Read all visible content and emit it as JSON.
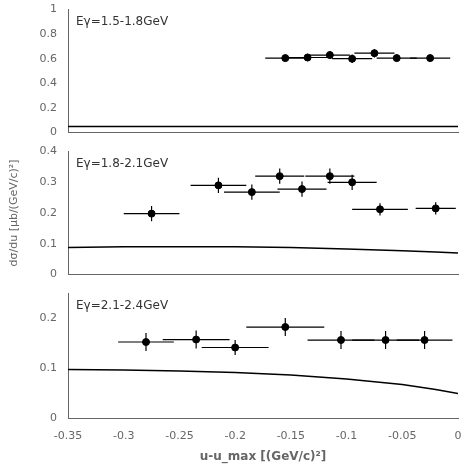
{
  "chart_data": [
    {
      "type": "scatter",
      "annotation": "Eγ=1.5-1.8GeV",
      "xlim": [
        -0.35,
        0.0
      ],
      "xticks": [
        -0.35,
        -0.3,
        -0.25,
        -0.2,
        -0.15,
        -0.1,
        -0.05,
        0
      ],
      "ylim": [
        0,
        1.0
      ],
      "yticks": [
        0,
        0.2,
        0.4,
        0.6,
        0.8,
        1
      ],
      "grid": false,
      "tick_labels": "y",
      "series": [
        {
          "type": "line",
          "color": "#000000",
          "line_style": "solid",
          "x": [
            -0.35,
            -0.3,
            -0.25,
            -0.2,
            -0.15,
            -0.1,
            -0.05,
            -0.02,
            0.0
          ],
          "values": [
            0.048,
            0.048,
            0.048,
            0.048,
            0.048,
            0.048,
            0.048,
            0.048,
            0.048
          ]
        },
        {
          "type": "scatter",
          "color": "#000000",
          "marker": "circle",
          "x": [
            -0.155,
            -0.135,
            -0.115,
            -0.095,
            -0.075,
            -0.055,
            -0.025
          ],
          "values": [
            0.605,
            0.61,
            0.63,
            0.6,
            0.645,
            0.605,
            0.605
          ],
          "xerr": [
            0.018,
            0.018,
            0.018,
            0.018,
            0.018,
            0.018,
            0.018
          ],
          "yerr": [
            0.03,
            0.03,
            0.03,
            0.035,
            0.035,
            0.03,
            0.03
          ]
        }
      ]
    },
    {
      "type": "scatter",
      "annotation": "Eγ=1.8-2.1GeV",
      "ylabel": "dσ/du [μb/(GeV/c)²]",
      "xlim": [
        -0.35,
        0.0
      ],
      "xticks": [
        -0.35,
        -0.3,
        -0.25,
        -0.2,
        -0.15,
        -0.1,
        -0.05,
        0
      ],
      "ylim": [
        0,
        0.4
      ],
      "yticks": [
        0,
        0.1,
        0.2,
        0.3,
        0.4
      ],
      "grid": false,
      "tick_labels": "y",
      "series": [
        {
          "type": "line",
          "color": "#000000",
          "line_style": "solid",
          "x": [
            -0.35,
            -0.3,
            -0.25,
            -0.2,
            -0.15,
            -0.1,
            -0.05,
            -0.02,
            0.0
          ],
          "values": [
            0.088,
            0.09,
            0.09,
            0.09,
            0.088,
            0.083,
            0.077,
            0.073,
            0.07
          ]
        },
        {
          "type": "scatter",
          "color": "#000000",
          "marker": "circle",
          "x": [
            -0.275,
            -0.215,
            -0.185,
            -0.16,
            -0.14,
            -0.115,
            -0.095,
            -0.07,
            -0.02
          ],
          "values": [
            0.198,
            0.29,
            0.268,
            0.32,
            0.278,
            0.32,
            0.3,
            0.212,
            0.215
          ],
          "xerr": [
            0.025,
            0.025,
            0.025,
            0.022,
            0.022,
            0.022,
            0.022,
            0.025,
            0.018
          ],
          "yerr": [
            0.025,
            0.025,
            0.025,
            0.025,
            0.025,
            0.025,
            0.025,
            0.02,
            0.02
          ]
        }
      ]
    },
    {
      "type": "scatter",
      "annotation": "Eγ=2.1-2.4GeV",
      "xlabel": "u-u_max [(GeV/c)²]",
      "xlim": [
        -0.35,
        0.0
      ],
      "xticks": [
        -0.35,
        -0.3,
        -0.25,
        -0.2,
        -0.15,
        -0.1,
        -0.05,
        0
      ],
      "ylim": [
        0,
        0.25
      ],
      "yticks": [
        0,
        0.1,
        0.2
      ],
      "grid": false,
      "series": [
        {
          "type": "line",
          "color": "#000000",
          "line_style": "solid",
          "x": [
            -0.35,
            -0.3,
            -0.25,
            -0.2,
            -0.15,
            -0.1,
            -0.05,
            -0.02,
            0.0
          ],
          "values": [
            0.098,
            0.097,
            0.095,
            0.092,
            0.087,
            0.079,
            0.068,
            0.058,
            0.05
          ]
        },
        {
          "type": "scatter",
          "color": "#000000",
          "marker": "circle",
          "x": [
            -0.28,
            -0.235,
            -0.2,
            -0.155,
            -0.105,
            -0.065,
            -0.03
          ],
          "values": [
            0.153,
            0.158,
            0.142,
            0.183,
            0.157,
            0.157,
            0.157
          ],
          "xerr": [
            0.025,
            0.03,
            0.03,
            0.035,
            0.03,
            0.03,
            0.025
          ],
          "yerr": [
            0.018,
            0.018,
            0.015,
            0.018,
            0.018,
            0.018,
            0.018
          ]
        }
      ]
    }
  ]
}
